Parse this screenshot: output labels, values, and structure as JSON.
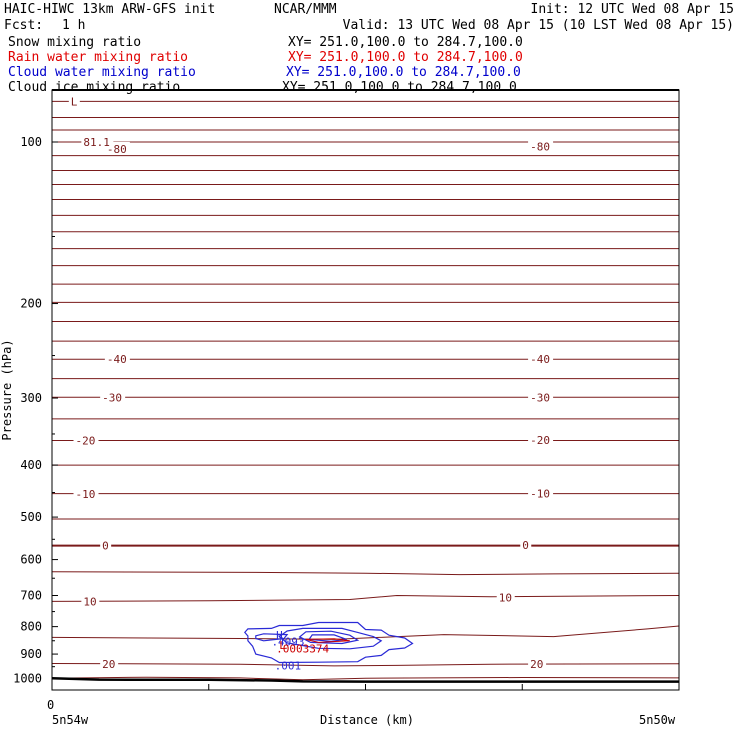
{
  "header": {
    "model": "HAIC-HIWC 13km ARW-GFS init",
    "center": "NCAR/MMM",
    "init": "Init: 12 UTC Wed 08 Apr 15",
    "fcst_label": "Fcst:",
    "fcst_value": "1 h",
    "valid": "Valid: 13 UTC Wed 08 Apr 15 (10 LST Wed 08 Apr 15)"
  },
  "fields": [
    {
      "name": "Snow mixing ratio",
      "xy": "XY= 251.0,100.0 to 284.7,100.0",
      "color": "#000000"
    },
    {
      "name": "Rain water mixing ratio",
      "xy": "XY= 251.0,100.0 to 284.7,100.0",
      "color": "#e00000"
    },
    {
      "name": "Cloud water mixing ratio",
      "xy": "XY= 251.0,100.0 to 284.7,100.0",
      "color": "#0000cc"
    },
    {
      "name": "Cloud ice mixing ratio",
      "xy": "XY= 251.0,100.0 to 284.7,100.0",
      "color": "#000000"
    }
  ],
  "chart_data": {
    "type": "line",
    "ylabel": "Pressure (hPa)",
    "xlabel": "Distance (km)",
    "yticks": [
      100,
      200,
      300,
      400,
      500,
      600,
      700,
      800,
      900,
      1000
    ],
    "y_scale": "log",
    "ylim": [
      1050,
      80
    ],
    "xlim": [
      0,
      4
    ],
    "x_zero_label": "0",
    "x_left_label": "5n54w",
    "x_right_label": "5n50w",
    "temperature_color": "#7a1a1a",
    "cloud_color": "#2a2ad6",
    "rain_color": "#cc0000",
    "terrain_color": "#000000",
    "temperature_labels": [
      {
        "text": "-80",
        "x": 0.35,
        "p": 103
      },
      {
        "text": "-80",
        "x": 3.05,
        "p": 102
      },
      {
        "text": "-40",
        "x": 0.35,
        "p": 254
      },
      {
        "text": "-40",
        "x": 3.05,
        "p": 254
      },
      {
        "text": "-30",
        "x": 0.32,
        "p": 299
      },
      {
        "text": "-30",
        "x": 3.05,
        "p": 299
      },
      {
        "text": "-20",
        "x": 0.15,
        "p": 360
      },
      {
        "text": "-20",
        "x": 3.05,
        "p": 359
      },
      {
        "text": "-10",
        "x": 0.15,
        "p": 453
      },
      {
        "text": "-10",
        "x": 3.05,
        "p": 452
      },
      {
        "text": "0",
        "x": 0.32,
        "p": 565
      },
      {
        "text": "0",
        "x": 3.0,
        "p": 564
      },
      {
        "text": "10",
        "x": 0.2,
        "p": 718
      },
      {
        "text": "10",
        "x": 2.85,
        "p": 706
      },
      {
        "text": "20",
        "x": 0.32,
        "p": 939
      },
      {
        "text": "20",
        "x": 3.05,
        "p": 939
      }
    ],
    "cloud_labels": [
      {
        "text": "H",
        "x": 1.43,
        "p": 830
      },
      {
        "text": ".4093",
        "x": 1.4,
        "p": 852
      },
      {
        "text": ".001",
        "x": 1.42,
        "p": 945
      }
    ],
    "rain_labels": [
      {
        "text": "L",
        "x": 1.45,
        "p": 865
      },
      {
        "text": ".0003374",
        "x": 1.43,
        "p": 878
      }
    ],
    "top_labels": [
      {
        "text": "L",
        "x": 0.12,
        "p": 84
      },
      {
        "text": "81.1",
        "x": 0.2,
        "p": 100
      }
    ]
  }
}
